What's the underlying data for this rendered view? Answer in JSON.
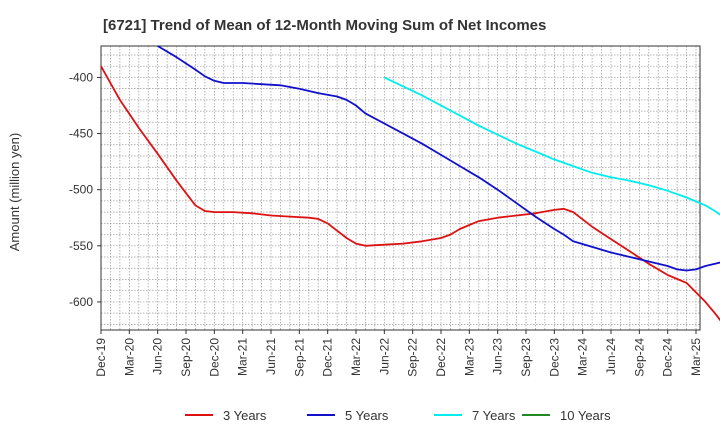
{
  "chart_data": {
    "type": "line",
    "title": "[6721]  Trend of Mean of 12-Month Moving Sum of Net Incomes",
    "ylabel": "Amount (million yen)",
    "xlabel": "",
    "x_ticks": [
      "Dec-19",
      "Mar-20",
      "Jun-20",
      "Sep-20",
      "Dec-20",
      "Mar-21",
      "Jun-21",
      "Sep-21",
      "Dec-21",
      "Mar-22",
      "Jun-22",
      "Sep-22",
      "Dec-22",
      "Mar-23",
      "Jun-23",
      "Sep-23",
      "Dec-23",
      "Mar-24",
      "Jun-24",
      "Sep-24",
      "Dec-24",
      "Mar-25"
    ],
    "y_ticks": [
      -400,
      -450,
      -500,
      -550,
      -600
    ],
    "ylim": [
      -625,
      -372
    ],
    "x_range_months": [
      0,
      63
    ],
    "grid": true,
    "legend_position": "bottom",
    "series": [
      {
        "name": "3 Years",
        "color": "#dd1111",
        "points": [
          [
            0,
            -390
          ],
          [
            2,
            -420
          ],
          [
            4,
            -445
          ],
          [
            6,
            -468
          ],
          [
            8,
            -492
          ],
          [
            10,
            -514
          ],
          [
            11,
            -519
          ],
          [
            12,
            -520
          ],
          [
            14,
            -520
          ],
          [
            16,
            -521
          ],
          [
            18,
            -523
          ],
          [
            20,
            -524
          ],
          [
            22,
            -525
          ],
          [
            23,
            -526
          ],
          [
            24,
            -530
          ],
          [
            26,
            -543
          ],
          [
            27,
            -548
          ],
          [
            28,
            -550
          ],
          [
            30,
            -549
          ],
          [
            32,
            -548
          ],
          [
            34,
            -546
          ],
          [
            36,
            -543
          ],
          [
            37,
            -540
          ],
          [
            38,
            -535
          ],
          [
            40,
            -528
          ],
          [
            42,
            -525
          ],
          [
            44,
            -523
          ],
          [
            46,
            -521
          ],
          [
            48,
            -518
          ],
          [
            49,
            -517
          ],
          [
            50,
            -520
          ],
          [
            52,
            -533
          ],
          [
            54,
            -544
          ],
          [
            56,
            -555
          ],
          [
            58,
            -566
          ],
          [
            60,
            -576
          ],
          [
            62,
            -583
          ],
          [
            64,
            -600
          ],
          [
            65,
            -610
          ],
          [
            66,
            -621
          ]
        ]
      },
      {
        "name": "5 Years",
        "color": "#1111cc",
        "points": [
          [
            6,
            -372
          ],
          [
            8,
            -382
          ],
          [
            10,
            -393
          ],
          [
            11,
            -399
          ],
          [
            12,
            -403
          ],
          [
            13,
            -405
          ],
          [
            15,
            -405
          ],
          [
            17,
            -406
          ],
          [
            19,
            -407
          ],
          [
            21,
            -410
          ],
          [
            23,
            -414
          ],
          [
            25,
            -417
          ],
          [
            26,
            -420
          ],
          [
            27,
            -425
          ],
          [
            28,
            -432
          ],
          [
            30,
            -441
          ],
          [
            32,
            -450
          ],
          [
            34,
            -459
          ],
          [
            36,
            -469
          ],
          [
            38,
            -479
          ],
          [
            40,
            -489
          ],
          [
            42,
            -500
          ],
          [
            44,
            -512
          ],
          [
            46,
            -524
          ],
          [
            48,
            -535
          ],
          [
            49,
            -540
          ],
          [
            50,
            -546
          ],
          [
            52,
            -551
          ],
          [
            54,
            -556
          ],
          [
            56,
            -560
          ],
          [
            58,
            -564
          ],
          [
            60,
            -568
          ],
          [
            61,
            -571
          ],
          [
            62,
            -572
          ],
          [
            63,
            -571
          ],
          [
            64,
            -568
          ],
          [
            66,
            -564
          ],
          [
            68,
            -562
          ],
          [
            70,
            -561
          ],
          [
            71,
            -560
          ],
          [
            72,
            -561
          ],
          [
            74,
            -565
          ],
          [
            75,
            -570
          ]
        ]
      },
      {
        "name": "7 Years",
        "color": "#00eeee",
        "points": [
          [
            30,
            -400
          ],
          [
            32,
            -408
          ],
          [
            34,
            -416
          ],
          [
            36,
            -425
          ],
          [
            38,
            -434
          ],
          [
            40,
            -443
          ],
          [
            42,
            -451
          ],
          [
            44,
            -459
          ],
          [
            46,
            -466
          ],
          [
            48,
            -473
          ],
          [
            50,
            -479
          ],
          [
            52,
            -485
          ],
          [
            54,
            -489
          ],
          [
            56,
            -492
          ],
          [
            58,
            -496
          ],
          [
            60,
            -501
          ],
          [
            62,
            -507
          ],
          [
            64,
            -514
          ],
          [
            65,
            -519
          ],
          [
            66,
            -525
          ],
          [
            67,
            -532
          ],
          [
            68,
            -540
          ]
        ]
      },
      {
        "name": "10 Years",
        "color": "#228822",
        "points": []
      }
    ]
  }
}
